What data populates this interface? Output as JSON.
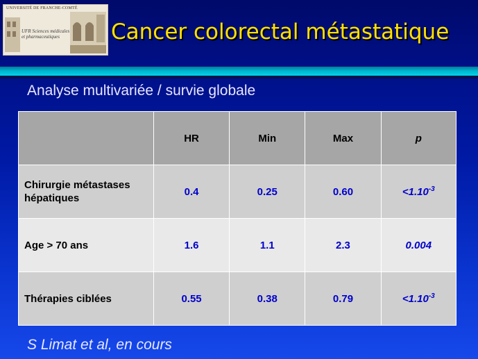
{
  "header": {
    "logo_university": "UNIVERSITÉ DE FRANCHE-COMTÉ",
    "logo_ufr": "UFR Sciences médicales et pharmaceutiques",
    "title": "Cancer colorectal métastatique"
  },
  "subtitle": "Analyse multivariée / survie globale",
  "table": {
    "headers": [
      "",
      "HR",
      "Min",
      "Max",
      "p"
    ],
    "rows": [
      {
        "label": "Chirurgie métastases hépatiques",
        "hr": "0.4",
        "min": "0.25",
        "max": "0.60",
        "p": "<1.10",
        "p_exp": "-3"
      },
      {
        "label": "Age > 70 ans",
        "hr": "1.6",
        "min": "1.1",
        "max": "2.3",
        "p": "0.004",
        "p_exp": ""
      },
      {
        "label": "Thérapies ciblées",
        "hr": "0.55",
        "min": "0.38",
        "max": "0.79",
        "p": "<1.10",
        "p_exp": "-3"
      }
    ]
  },
  "footer": "S Limat et al, en cours",
  "colors": {
    "title": "#ffe100",
    "value_text": "#0000cc",
    "header_bg": "#a6a6a6",
    "band": "#00b8d2"
  }
}
